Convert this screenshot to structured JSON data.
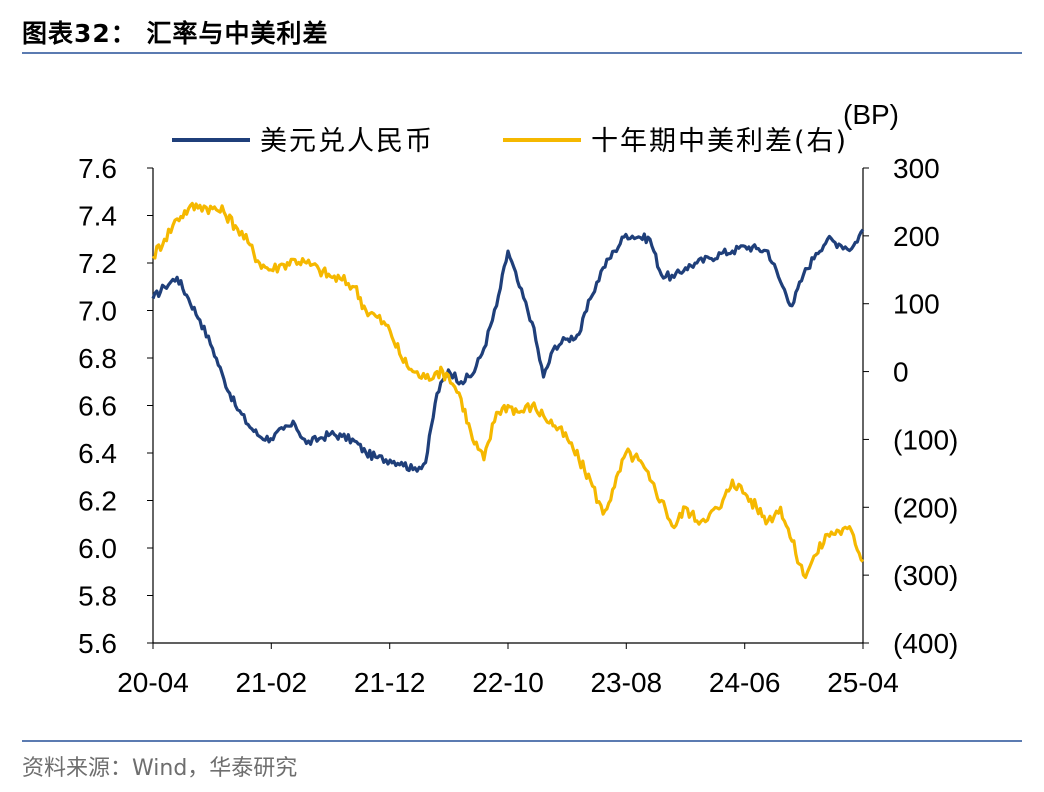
{
  "header": {
    "title": "图表32：  汇率与中美利差"
  },
  "footer": {
    "source": "资料来源：Wind，华泰研究"
  },
  "chart_data": {
    "type": "line",
    "title": "汇率与中美利差",
    "x_ticks": [
      "20-04",
      "21-02",
      "21-12",
      "22-10",
      "23-08",
      "24-06",
      "25-04"
    ],
    "x_tick_times": [
      2020.25,
      2021.083,
      2021.917,
      2022.75,
      2023.583,
      2024.417,
      2025.25
    ],
    "x_range": [
      2020.25,
      2025.25
    ],
    "y_left": {
      "range": [
        5.6,
        7.6
      ],
      "ticks": [
        "7.6",
        "7.4",
        "7.2",
        "7.0",
        "6.8",
        "6.6",
        "6.4",
        "6.2",
        "6.0",
        "5.8",
        "5.6"
      ],
      "tick_values": [
        7.6,
        7.4,
        7.2,
        7.0,
        6.8,
        6.6,
        6.4,
        6.2,
        6.0,
        5.8,
        5.6
      ]
    },
    "y_right": {
      "unit": "(BP)",
      "range": [
        -400,
        300
      ],
      "ticks": [
        "300",
        "200",
        "100",
        "0",
        "(100)",
        "(200)",
        "(300)",
        "(400)"
      ],
      "tick_values": [
        300,
        200,
        100,
        0,
        -100,
        -200,
        -300,
        -400
      ]
    },
    "legend": {
      "position": "top",
      "items": [
        "美元兑人民币",
        "十年期中美利差(右)"
      ]
    },
    "series": [
      {
        "name": "美元兑人民币",
        "axis": "left",
        "color": "#1f3f7a",
        "x": [
          2020.25,
          2020.33,
          2020.42,
          2020.5,
          2020.58,
          2020.67,
          2020.75,
          2020.83,
          2020.92,
          2021.0,
          2021.08,
          2021.17,
          2021.25,
          2021.33,
          2021.42,
          2021.5,
          2021.58,
          2021.67,
          2021.75,
          2021.83,
          2021.92,
          2022.0,
          2022.08,
          2022.17,
          2022.25,
          2022.33,
          2022.42,
          2022.5,
          2022.58,
          2022.67,
          2022.75,
          2022.83,
          2022.92,
          2023.0,
          2023.08,
          2023.17,
          2023.25,
          2023.33,
          2023.42,
          2023.5,
          2023.58,
          2023.67,
          2023.75,
          2023.83,
          2023.92,
          2024.0,
          2024.08,
          2024.17,
          2024.25,
          2024.33,
          2024.42,
          2024.5,
          2024.58,
          2024.67,
          2024.75,
          2024.83,
          2024.92,
          2025.0,
          2025.08,
          2025.17,
          2025.25
        ],
        "values": [
          7.05,
          7.1,
          7.14,
          7.05,
          6.96,
          6.84,
          6.71,
          6.6,
          6.52,
          6.47,
          6.46,
          6.5,
          6.52,
          6.44,
          6.46,
          6.48,
          6.47,
          6.45,
          6.4,
          6.38,
          6.37,
          6.36,
          6.33,
          6.36,
          6.65,
          6.75,
          6.7,
          6.73,
          6.84,
          7.02,
          7.25,
          7.1,
          6.95,
          6.72,
          6.85,
          6.88,
          6.9,
          7.05,
          7.18,
          7.25,
          7.32,
          7.31,
          7.3,
          7.15,
          7.14,
          7.18,
          7.2,
          7.22,
          7.24,
          7.25,
          7.27,
          7.26,
          7.25,
          7.12,
          7.02,
          7.15,
          7.24,
          7.3,
          7.28,
          7.26,
          7.34
        ]
      },
      {
        "name": "十年期中美利差(右)",
        "axis": "right",
        "color": "#f5b800",
        "x": [
          2020.25,
          2020.33,
          2020.42,
          2020.5,
          2020.58,
          2020.67,
          2020.75,
          2020.83,
          2020.92,
          2021.0,
          2021.08,
          2021.17,
          2021.25,
          2021.33,
          2021.42,
          2021.5,
          2021.58,
          2021.67,
          2021.75,
          2021.83,
          2021.92,
          2022.0,
          2022.08,
          2022.17,
          2022.25,
          2022.33,
          2022.42,
          2022.5,
          2022.58,
          2022.67,
          2022.75,
          2022.83,
          2022.92,
          2023.0,
          2023.08,
          2023.17,
          2023.25,
          2023.33,
          2023.42,
          2023.5,
          2023.58,
          2023.67,
          2023.75,
          2023.83,
          2023.92,
          2024.0,
          2024.08,
          2024.17,
          2024.25,
          2024.33,
          2024.42,
          2024.5,
          2024.58,
          2024.67,
          2024.75,
          2024.83,
          2024.92,
          2025.0,
          2025.08,
          2025.17,
          2025.25
        ],
        "values": [
          170,
          195,
          225,
          240,
          245,
          240,
          235,
          215,
          190,
          160,
          150,
          158,
          165,
          160,
          150,
          140,
          135,
          125,
          90,
          80,
          60,
          20,
          0,
          -10,
          0,
          -5,
          -40,
          -100,
          -130,
          -60,
          -50,
          -60,
          -50,
          -65,
          -80,
          -100,
          -130,
          -160,
          -210,
          -170,
          -120,
          -130,
          -160,
          -190,
          -230,
          -200,
          -220,
          -210,
          -200,
          -160,
          -180,
          -200,
          -220,
          -200,
          -250,
          -300,
          -270,
          -240,
          -235,
          -235,
          -280
        ]
      }
    ]
  }
}
